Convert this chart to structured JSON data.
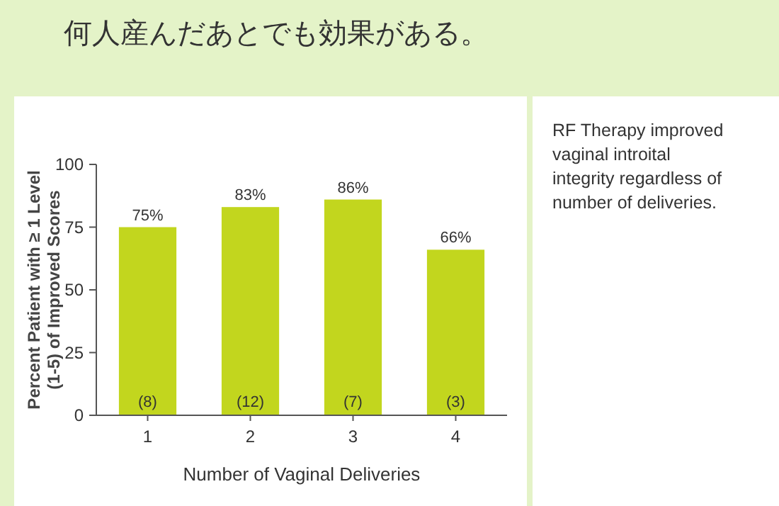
{
  "chart_data": {
    "type": "bar",
    "title": "何人産んだあとでも効果がある。",
    "xlabel": "Number of Vaginal Deliveries",
    "ylabel": "Percent Patient with ≥ 1 Level (1-5) of Improved Scores",
    "categories": [
      "1",
      "2",
      "3",
      "4"
    ],
    "values": [
      75,
      83,
      86,
      66
    ],
    "value_labels": [
      "75%",
      "83%",
      "86%",
      "66%"
    ],
    "color": "#c2d61e",
    "ylim": [
      0,
      100
    ],
    "yticks": [
      0,
      25,
      50,
      75,
      100
    ],
    "annotations": [
      {
        "text": "(8)",
        "x": "1",
        "y": 0
      },
      {
        "text": "(12)",
        "x": "2",
        "y": 0
      },
      {
        "text": "(7)",
        "x": "3",
        "y": 0
      },
      {
        "text": "(3)",
        "x": "4",
        "y": 0
      },
      "RF Therapy improved vaginal introital integrity regardless of number of deliveries."
    ]
  }
}
